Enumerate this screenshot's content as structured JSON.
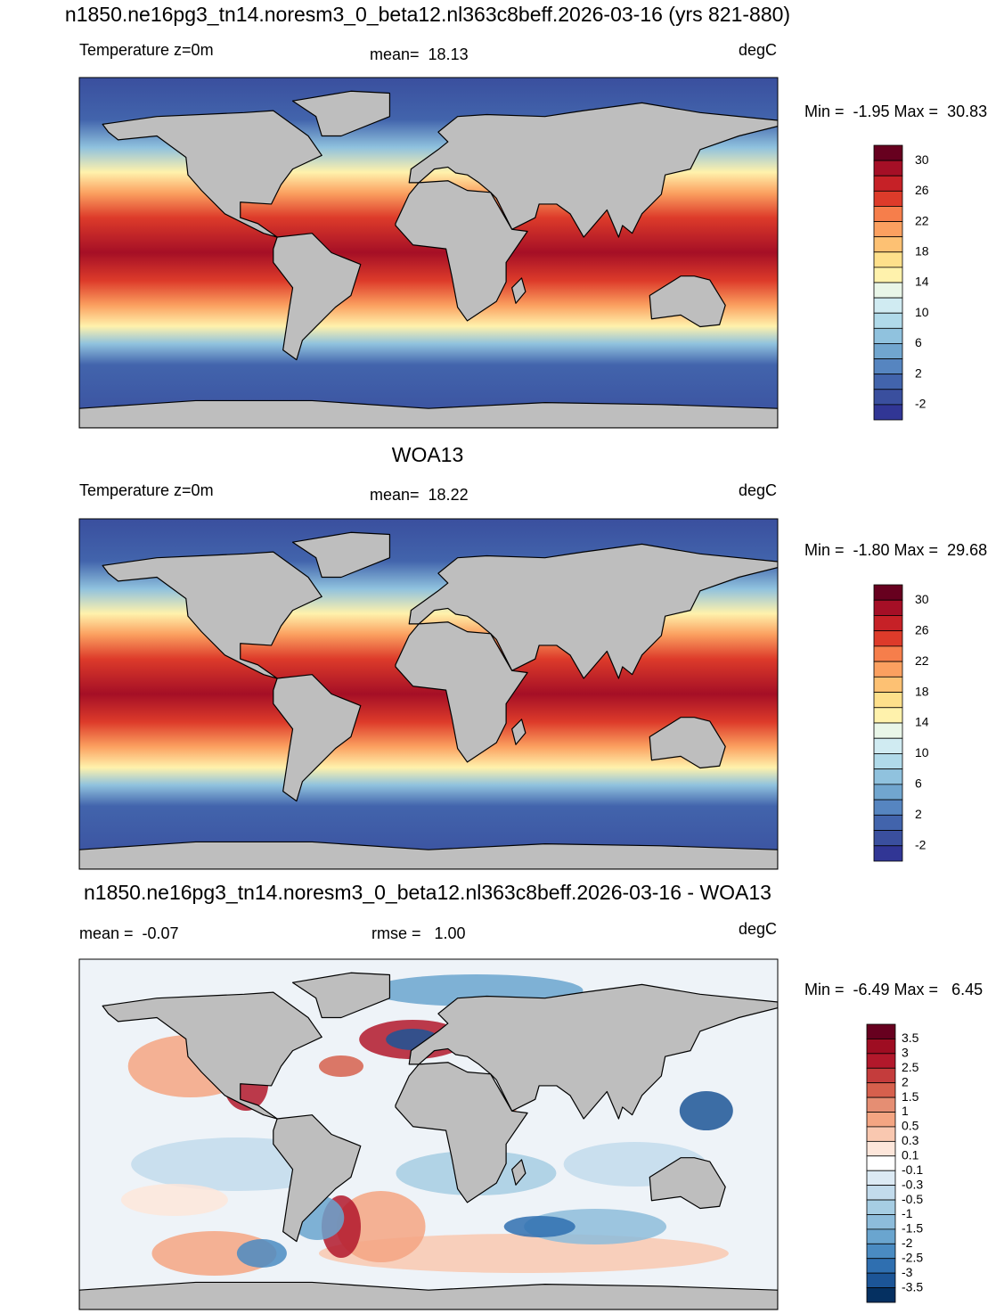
{
  "panels": [
    {
      "title": "n1850.ne16pg3_tn14.noresm3_0_beta12.nl363c8beff.2026-03-16 (yrs 821-880)",
      "label": "Temperature z=0m",
      "stat": "mean=  18.13",
      "units": "degC",
      "range": "Min =  -1.95 Max =  30.83",
      "colorbar": {
        "labels": [
          "30",
          "26",
          "22",
          "18",
          "14",
          "10",
          "6",
          "2",
          "-2"
        ],
        "colors": [
          "#67001f",
          "#a50f26",
          "#c62127",
          "#dd3b2a",
          "#f67e4b",
          "#fba060",
          "#fdc173",
          "#fee08b",
          "#fff2ac",
          "#e9f6e8",
          "#d0ebf2",
          "#b0daea",
          "#90c2de",
          "#71a6cf",
          "#5685c0",
          "#4264ac",
          "#3a4f9e",
          "#313695"
        ]
      }
    },
    {
      "title": "WOA13",
      "label": "Temperature z=0m",
      "stat": "mean=  18.22",
      "units": "degC",
      "range": "Min =  -1.80 Max =  29.68",
      "colorbar": {
        "labels": [
          "30",
          "26",
          "22",
          "18",
          "14",
          "10",
          "6",
          "2",
          "-2"
        ],
        "colors": [
          "#67001f",
          "#a50f26",
          "#c62127",
          "#dd3b2a",
          "#f67e4b",
          "#fba060",
          "#fdc173",
          "#fee08b",
          "#fff2ac",
          "#e9f6e8",
          "#d0ebf2",
          "#b0daea",
          "#90c2de",
          "#71a6cf",
          "#5685c0",
          "#4264ac",
          "#3a4f9e",
          "#313695"
        ]
      }
    },
    {
      "title": "n1850.ne16pg3_tn14.noresm3_0_beta12.nl363c8beff.2026-03-16 - WOA13",
      "label": "mean =  -0.07",
      "stat": "rmse =   1.00",
      "units": "degC",
      "range": "Min =  -6.49 Max =   6.45",
      "colorbar": {
        "labels": [
          "3.5",
          "3",
          "2.5",
          "2",
          "1.5",
          "1",
          "0.5",
          "0.3",
          "0.1",
          "-0.1",
          "-0.3",
          "-0.5",
          "-1",
          "-1.5",
          "-2",
          "-2.5",
          "-3",
          "-3.5"
        ],
        "colors": [
          "#67001f",
          "#9e0d22",
          "#b2182b",
          "#c43c3c",
          "#d6604d",
          "#e58e73",
          "#f4a582",
          "#f9c8b0",
          "#fde6da",
          "#ffffff",
          "#dceaf4",
          "#c2dbec",
          "#a6cde3",
          "#8dbcdb",
          "#6aa5cf",
          "#4a8bc2",
          "#2f6fb0",
          "#1c5597",
          "#053061"
        ]
      }
    }
  ]
}
